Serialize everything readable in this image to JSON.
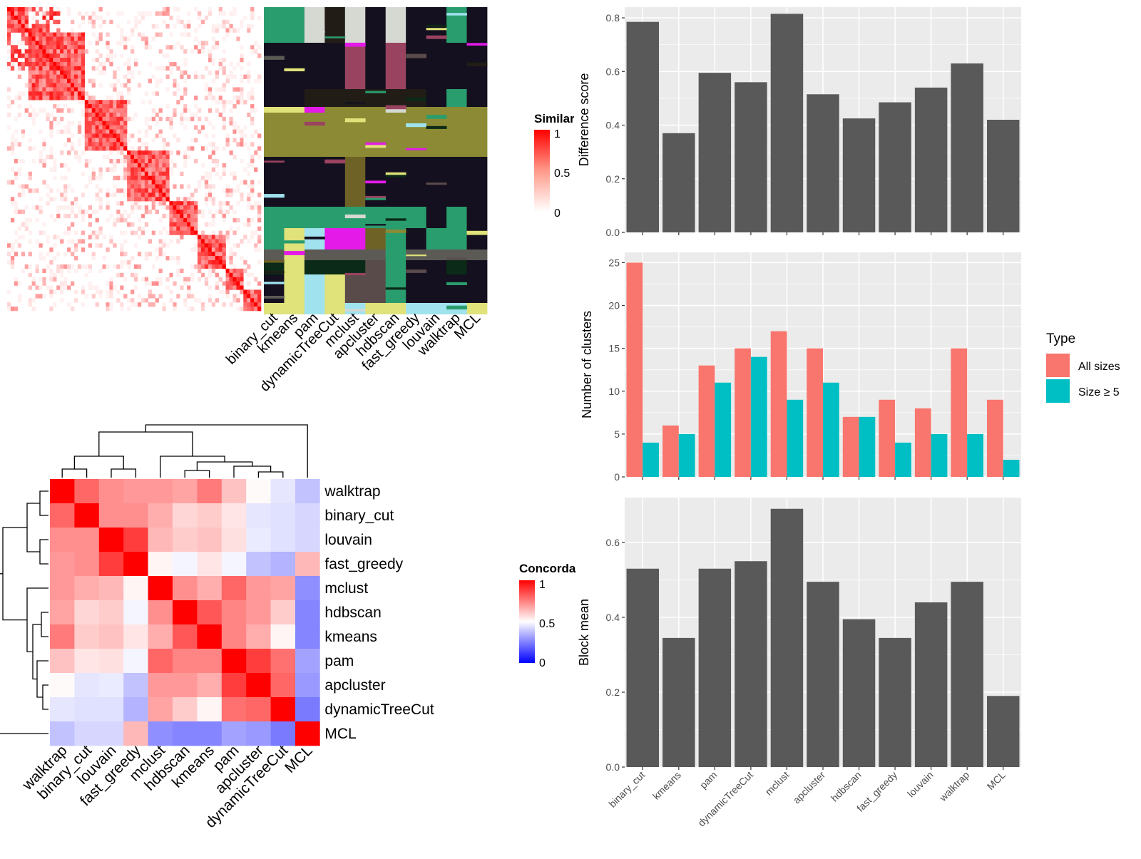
{
  "chart_data": [
    {
      "type": "heatmap",
      "legend": {
        "title": "Similarity",
        "ticks": [
          "1",
          "0.5",
          "0"
        ]
      }
    },
    {
      "type": "heatmap",
      "columns": [
        "binary_cut",
        "kmeans",
        "pam",
        "dynamicTreeCut",
        "mclust",
        "apcluster",
        "hdbscan",
        "fast_greedy",
        "louvain",
        "walktrap",
        "MCL"
      ]
    },
    {
      "type": "heatmap",
      "rows": [
        "walktrap",
        "binary_cut",
        "louvain",
        "fast_greedy",
        "mclust",
        "hdbscan",
        "kmeans",
        "pam",
        "apcluster",
        "dynamicTreeCut",
        "MCL"
      ],
      "columns": [
        "walktrap",
        "binary_cut",
        "louvain",
        "fast_greedy",
        "mclust",
        "hdbscan",
        "kmeans",
        "pam",
        "apcluster",
        "dynamicTreeCut",
        "MCL"
      ],
      "values": [
        [
          1.0,
          0.8,
          0.72,
          0.7,
          0.7,
          0.68,
          0.76,
          0.62,
          0.51,
          0.45,
          0.38
        ],
        [
          0.8,
          1.0,
          0.72,
          0.72,
          0.66,
          0.58,
          0.6,
          0.55,
          0.45,
          0.44,
          0.42
        ],
        [
          0.72,
          0.72,
          1.0,
          0.88,
          0.64,
          0.6,
          0.62,
          0.56,
          0.46,
          0.44,
          0.42
        ],
        [
          0.7,
          0.72,
          0.88,
          1.0,
          0.52,
          0.48,
          0.55,
          0.48,
          0.38,
          0.35,
          0.64
        ],
        [
          0.7,
          0.66,
          0.64,
          0.52,
          1.0,
          0.72,
          0.66,
          0.8,
          0.7,
          0.68,
          0.28
        ],
        [
          0.68,
          0.58,
          0.6,
          0.48,
          0.72,
          1.0,
          0.83,
          0.74,
          0.7,
          0.6,
          0.26
        ],
        [
          0.76,
          0.6,
          0.62,
          0.55,
          0.66,
          0.83,
          1.0,
          0.74,
          0.66,
          0.52,
          0.26
        ],
        [
          0.62,
          0.55,
          0.56,
          0.48,
          0.8,
          0.74,
          0.74,
          1.0,
          0.88,
          0.78,
          0.32
        ],
        [
          0.51,
          0.45,
          0.46,
          0.38,
          0.7,
          0.7,
          0.66,
          0.88,
          1.0,
          0.8,
          0.3
        ],
        [
          0.45,
          0.44,
          0.44,
          0.35,
          0.68,
          0.6,
          0.52,
          0.78,
          0.8,
          1.0,
          0.24
        ],
        [
          0.38,
          0.42,
          0.42,
          0.64,
          0.28,
          0.26,
          0.26,
          0.32,
          0.3,
          0.24,
          1.0
        ]
      ],
      "legend": {
        "title": "Concordance",
        "ticks": [
          "1",
          "0.5",
          "0"
        ]
      }
    },
    {
      "type": "bar",
      "categories": [
        "binary_cut",
        "kmeans",
        "pam",
        "dynamicTreeCut",
        "mclust",
        "apcluster",
        "hdbscan",
        "fast_greedy",
        "louvain",
        "walktrap",
        "MCL"
      ],
      "values": [
        0.785,
        0.37,
        0.595,
        0.56,
        0.815,
        0.515,
        0.425,
        0.485,
        0.54,
        0.63,
        0.42
      ],
      "ylabel": "Difference score",
      "ylim": [
        0,
        0.84
      ],
      "yticks": [
        "0.0",
        "0.2",
        "0.4",
        "0.6",
        "0.8"
      ]
    },
    {
      "type": "bar",
      "categories": [
        "binary_cut",
        "kmeans",
        "pam",
        "dynamicTreeCut",
        "mclust",
        "apcluster",
        "hdbscan",
        "fast_greedy",
        "louvain",
        "walktrap",
        "MCL"
      ],
      "series": [
        {
          "name": "All sizes",
          "values": [
            25,
            6,
            13,
            15,
            17,
            15,
            7,
            9,
            8,
            15,
            9
          ],
          "color": "#F8766D"
        },
        {
          "name": "Size ≥ 5",
          "values": [
            4,
            5,
            11,
            14,
            9,
            11,
            7,
            4,
            5,
            5,
            2
          ],
          "color": "#00BFC4"
        }
      ],
      "ylabel": "Number of clusters",
      "ylim": [
        0,
        26.2
      ],
      "yticks": [
        "0",
        "5",
        "10",
        "15",
        "20",
        "25"
      ],
      "legend": {
        "title": "Type",
        "position": "right"
      }
    },
    {
      "type": "bar",
      "categories": [
        "binary_cut",
        "kmeans",
        "pam",
        "dynamicTreeCut",
        "mclust",
        "apcluster",
        "hdbscan",
        "fast_greedy",
        "louvain",
        "walktrap",
        "MCL"
      ],
      "values": [
        0.53,
        0.345,
        0.53,
        0.55,
        0.69,
        0.495,
        0.395,
        0.345,
        0.44,
        0.495,
        0.19
      ],
      "ylabel": "Block mean",
      "ylim": [
        0,
        0.72
      ],
      "yticks": [
        "0.0",
        "0.2",
        "0.4",
        "0.6"
      ]
    }
  ]
}
